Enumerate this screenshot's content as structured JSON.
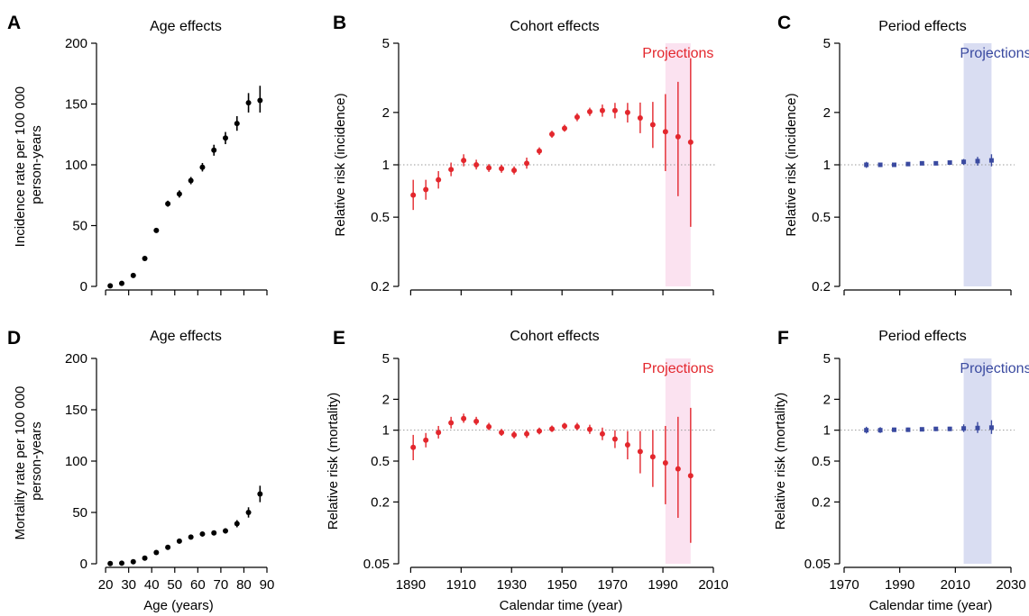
{
  "colors": {
    "age_points": "#000000",
    "cohort_points": "#e3272d",
    "period_points": "#3a4aa0",
    "cohort_projection_band": "#fbe2f0",
    "period_projection_band": "#d9ddf2",
    "cohort_projection_text": "#e3272d",
    "period_projection_text": "#3a4aa0",
    "reference_line": "#9a9a9a"
  },
  "chart_data": [
    {
      "panel": "A",
      "type": "scatter",
      "title": "Age effects",
      "ylabel": "Incidence rate per 100 000 person-years",
      "xlabel": "",
      "ylim": [
        0,
        200
      ],
      "xlim": [
        18,
        90
      ],
      "y_scale": "linear",
      "xticks": [
        20,
        30,
        40,
        50,
        60,
        70,
        80,
        90
      ],
      "xtick_labels": [],
      "yticks": [
        0,
        50,
        100,
        150,
        200
      ],
      "ytick_labels": [
        "0",
        "50",
        "100",
        "150",
        "200"
      ],
      "x": [
        22,
        27,
        32,
        37,
        42,
        47,
        52,
        57,
        62,
        67,
        72,
        77,
        82,
        87
      ],
      "y": [
        0.5,
        2.5,
        9,
        23,
        46,
        68,
        76,
        87,
        98,
        112,
        122,
        134,
        151,
        153
      ],
      "lower": [
        0.2,
        1.8,
        7.8,
        21.5,
        44.2,
        65.5,
        73,
        84,
        94.5,
        107.5,
        117,
        128,
        143,
        143
      ],
      "upper": [
        0.8,
        3.2,
        10.2,
        24.5,
        47.8,
        70.5,
        79,
        90,
        101.5,
        116.5,
        127,
        140,
        159,
        165
      ]
    },
    {
      "panel": "B",
      "type": "scatter",
      "title": "Cohort effects",
      "ylabel": "Relative risk (incidence)",
      "xlabel": "",
      "ylim": [
        0.2,
        5
      ],
      "xlim": [
        1887,
        2010
      ],
      "y_scale": "log",
      "xticks": [
        1890,
        1910,
        1930,
        1950,
        1970,
        1990,
        2010
      ],
      "xtick_labels": [],
      "yticks": [
        0.2,
        0.5,
        1,
        2,
        5
      ],
      "ytick_labels": [
        "0.2",
        "0.5",
        "1",
        "2",
        "5"
      ],
      "reference_line": 1,
      "projection_band": [
        1991,
        2001
      ],
      "projection_label": "Projections",
      "x": [
        1891,
        1896,
        1901,
        1906,
        1911,
        1916,
        1921,
        1926,
        1931,
        1936,
        1941,
        1946,
        1951,
        1956,
        1961,
        1966,
        1971,
        1976,
        1981,
        1986,
        1991,
        1996,
        2001
      ],
      "y": [
        0.67,
        0.72,
        0.82,
        0.94,
        1.06,
        1.0,
        0.96,
        0.95,
        0.93,
        1.02,
        1.2,
        1.5,
        1.62,
        1.88,
        2.02,
        2.05,
        2.05,
        2.0,
        1.86,
        1.7,
        1.55,
        1.45,
        1.35
      ],
      "lower": [
        0.55,
        0.63,
        0.73,
        0.86,
        0.98,
        0.94,
        0.91,
        0.9,
        0.88,
        0.95,
        1.14,
        1.43,
        1.55,
        1.78,
        1.91,
        1.89,
        1.85,
        1.75,
        1.52,
        1.25,
        0.92,
        0.66,
        0.44
      ],
      "upper": [
        0.82,
        0.82,
        0.92,
        1.03,
        1.15,
        1.07,
        1.01,
        1.0,
        0.98,
        1.1,
        1.26,
        1.57,
        1.7,
        1.98,
        2.13,
        2.22,
        2.27,
        2.27,
        2.28,
        2.3,
        2.55,
        3.0,
        4.1
      ]
    },
    {
      "panel": "C",
      "type": "scatter",
      "title": "Period effects",
      "ylabel": "Relative risk (incidence)",
      "xlabel": "",
      "ylim": [
        0.2,
        5
      ],
      "xlim": [
        1970,
        2030
      ],
      "y_scale": "log",
      "xticks": [
        1970,
        1990,
        2010,
        2030
      ],
      "xtick_labels": [],
      "yticks": [
        0.2,
        0.5,
        1,
        2,
        5
      ],
      "ytick_labels": [
        "0.2",
        "0.5",
        "1",
        "2",
        "5"
      ],
      "reference_line": 1,
      "projection_band": [
        2013,
        2023
      ],
      "projection_label": "Projections",
      "x": [
        1978,
        1983,
        1988,
        1993,
        1998,
        2003,
        2008,
        2013,
        2018,
        2023
      ],
      "y": [
        1.0,
        1.0,
        1.0,
        1.01,
        1.02,
        1.02,
        1.03,
        1.04,
        1.05,
        1.06
      ],
      "lower": [
        0.96,
        0.97,
        0.98,
        0.99,
        1.0,
        1.0,
        1.01,
        1.0,
        0.99,
        0.98
      ],
      "upper": [
        1.04,
        1.03,
        1.02,
        1.03,
        1.04,
        1.04,
        1.05,
        1.08,
        1.11,
        1.15
      ]
    },
    {
      "panel": "D",
      "type": "scatter",
      "title": "Age effects",
      "ylabel": "Mortality rate per 100 000 person-years",
      "xlabel": "Age (years)",
      "ylim": [
        0,
        200
      ],
      "xlim": [
        18,
        90
      ],
      "y_scale": "linear",
      "xticks": [
        20,
        30,
        40,
        50,
        60,
        70,
        80,
        90
      ],
      "xtick_labels": [
        "20",
        "30",
        "40",
        "50",
        "60",
        "70",
        "80",
        "90"
      ],
      "yticks": [
        0,
        50,
        100,
        150,
        200
      ],
      "ytick_labels": [
        "0",
        "50",
        "100",
        "150",
        "200"
      ],
      "x": [
        22,
        27,
        32,
        37,
        42,
        47,
        52,
        57,
        62,
        67,
        72,
        77,
        82,
        87
      ],
      "y": [
        0.2,
        0.6,
        2,
        5.5,
        11,
        16,
        22,
        26,
        29,
        30,
        32,
        39,
        50,
        68
      ],
      "lower": [
        0.1,
        0.4,
        1.6,
        4.8,
        10,
        14.8,
        20.8,
        24.5,
        27.3,
        28,
        29.5,
        35.5,
        45,
        60
      ],
      "upper": [
        0.3,
        0.8,
        2.4,
        6.2,
        12,
        17.2,
        23.2,
        27.5,
        30.7,
        32,
        34.5,
        42.5,
        55,
        76
      ]
    },
    {
      "panel": "E",
      "type": "scatter",
      "title": "Cohort effects",
      "ylabel": "Relative risk (mortality)",
      "xlabel": "Calendar time (year)",
      "ylim": [
        0.05,
        5
      ],
      "xlim": [
        1887,
        2010
      ],
      "y_scale": "log",
      "xticks": [
        1890,
        1910,
        1930,
        1950,
        1970,
        1990,
        2010
      ],
      "xtick_labels": [
        "1890",
        "1910",
        "1930",
        "1950",
        "1970",
        "1990",
        "2010"
      ],
      "yticks": [
        0.05,
        0.2,
        0.5,
        1,
        2,
        5
      ],
      "ytick_labels": [
        "0.05",
        "0.2",
        "0.5",
        "1",
        "2",
        "5"
      ],
      "reference_line": 1,
      "projection_band": [
        1991,
        2001
      ],
      "projection_label": "Projections",
      "x": [
        1891,
        1896,
        1901,
        1906,
        1911,
        1916,
        1921,
        1926,
        1931,
        1936,
        1941,
        1946,
        1951,
        1956,
        1961,
        1966,
        1971,
        1976,
        1981,
        1986,
        1991,
        1996,
        2001
      ],
      "y": [
        0.68,
        0.8,
        0.95,
        1.18,
        1.3,
        1.22,
        1.08,
        0.95,
        0.9,
        0.92,
        0.98,
        1.03,
        1.1,
        1.08,
        1.02,
        0.92,
        0.82,
        0.72,
        0.62,
        0.55,
        0.48,
        0.42,
        0.36
      ],
      "lower": [
        0.51,
        0.68,
        0.83,
        1.04,
        1.18,
        1.12,
        1.0,
        0.88,
        0.83,
        0.84,
        0.91,
        0.96,
        1.02,
        1.0,
        0.92,
        0.8,
        0.67,
        0.52,
        0.38,
        0.28,
        0.19,
        0.14,
        0.08
      ],
      "upper": [
        0.9,
        0.94,
        1.1,
        1.35,
        1.45,
        1.35,
        1.18,
        1.03,
        0.98,
        1.0,
        1.06,
        1.11,
        1.18,
        1.18,
        1.13,
        1.06,
        1.0,
        0.98,
        0.98,
        1.0,
        1.1,
        1.35,
        1.65
      ]
    },
    {
      "panel": "F",
      "type": "scatter",
      "title": "Period effects",
      "ylabel": "Relative risk (mortality)",
      "xlabel": "Calendar time (year)",
      "ylim": [
        0.05,
        5
      ],
      "xlim": [
        1970,
        2030
      ],
      "y_scale": "log",
      "xticks": [
        1970,
        1990,
        2010,
        2030
      ],
      "xtick_labels": [
        "1970",
        "1990",
        "2010",
        "2030"
      ],
      "yticks": [
        0.05,
        0.2,
        0.5,
        1,
        2,
        5
      ],
      "ytick_labels": [
        "0.05",
        "0.2",
        "0.5",
        "1",
        "2",
        "5"
      ],
      "reference_line": 1,
      "projection_band": [
        2013,
        2023
      ],
      "projection_label": "Projections",
      "x": [
        1978,
        1983,
        1988,
        1993,
        1998,
        2003,
        2008,
        2013,
        2018,
        2023
      ],
      "y": [
        1.0,
        1.0,
        1.01,
        1.01,
        1.02,
        1.03,
        1.03,
        1.04,
        1.05,
        1.06
      ],
      "lower": [
        0.93,
        0.94,
        0.96,
        0.97,
        0.98,
        0.98,
        0.98,
        0.96,
        0.94,
        0.92
      ],
      "upper": [
        1.08,
        1.07,
        1.06,
        1.06,
        1.06,
        1.07,
        1.08,
        1.14,
        1.2,
        1.25
      ]
    }
  ]
}
